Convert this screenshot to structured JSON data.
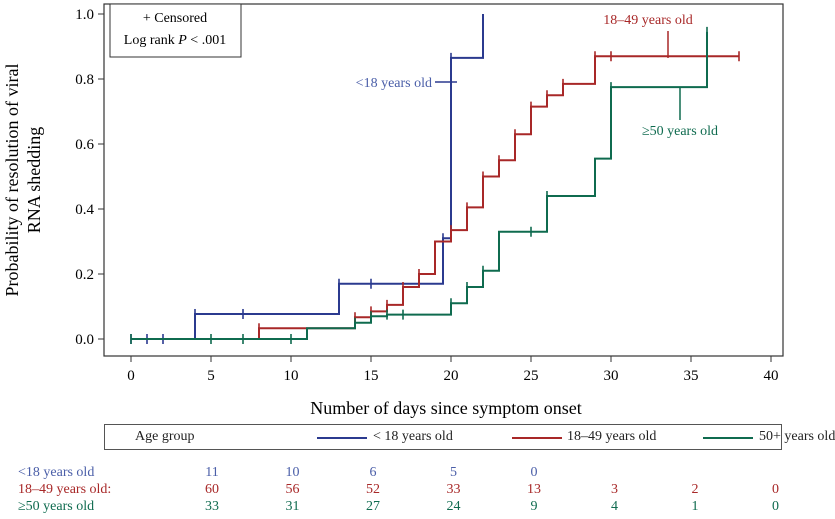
{
  "chart_data": {
    "type": "line",
    "step": true,
    "xlim": [
      0,
      40
    ],
    "ylim": [
      0,
      1
    ],
    "xticks": [
      0,
      5,
      10,
      15,
      20,
      25,
      30,
      35,
      40
    ],
    "yticks": [
      0.0,
      0.2,
      0.4,
      0.6,
      0.8,
      1.0
    ],
    "ytick_labels": [
      "0.0",
      "0.2",
      "0.4",
      "0.6",
      "0.8",
      "1.0"
    ],
    "xlabel": "Number of days since symptom onset",
    "ylabel_line1": "Probability of  resolution of viral",
    "ylabel_line2": "RNA shedding",
    "annotation_box": {
      "line1": "+ Censored",
      "line2_prefix": "Log rank ",
      "line2_p": "P",
      "line2_suffix": " < .001"
    },
    "series": [
      {
        "name": "<18 years old",
        "label": "<18 years old",
        "color": "#2b3a8f",
        "steps": [
          [
            0,
            0
          ],
          [
            4,
            0.077
          ],
          [
            13,
            0.17
          ],
          [
            19.5,
            0.31
          ],
          [
            20,
            0.865
          ],
          [
            22,
            1.0
          ]
        ],
        "end_x": 22,
        "censored_x": [
          0,
          1,
          2,
          4,
          7,
          13,
          15,
          19.5,
          20
        ]
      },
      {
        "name": "18-49 years old",
        "label": "18–49 years old",
        "color": "#a82828",
        "steps": [
          [
            0,
            0
          ],
          [
            8,
            0.033
          ],
          [
            14,
            0.067
          ],
          [
            15,
            0.085
          ],
          [
            16,
            0.105
          ],
          [
            17,
            0.16
          ],
          [
            18,
            0.2
          ],
          [
            19,
            0.3
          ],
          [
            20,
            0.335
          ],
          [
            21,
            0.405
          ],
          [
            22,
            0.5
          ],
          [
            23,
            0.55
          ],
          [
            24,
            0.63
          ],
          [
            25,
            0.715
          ],
          [
            26,
            0.75
          ],
          [
            27,
            0.785
          ],
          [
            29,
            0.87
          ]
        ],
        "end_x": 38,
        "censored_x": [
          8,
          14,
          15,
          16,
          17,
          18,
          20,
          21,
          22,
          23,
          24,
          25,
          26,
          27,
          29,
          30,
          38
        ]
      },
      {
        "name": "≥50 years old",
        "label": "≥50 years old",
        "color": "#0f6b4f",
        "steps": [
          [
            0,
            0
          ],
          [
            11,
            0.033
          ],
          [
            14,
            0.05
          ],
          [
            15,
            0.07
          ],
          [
            16,
            0.075
          ],
          [
            20,
            0.11
          ],
          [
            21,
            0.16
          ],
          [
            22,
            0.21
          ],
          [
            23,
            0.33
          ],
          [
            26,
            0.44
          ],
          [
            29,
            0.555
          ],
          [
            30,
            0.775
          ],
          [
            36,
            0.945
          ]
        ],
        "end_x": 36,
        "censored_x": [
          0,
          5,
          7,
          10,
          14,
          15,
          16,
          17,
          20,
          21,
          22,
          25,
          26,
          30,
          36
        ]
      }
    ]
  },
  "legend": {
    "title": "Age group",
    "items": [
      {
        "label": "< 18 years old",
        "color": "#2b3a8f"
      },
      {
        "label": "18–49 years old",
        "color": "#a82828"
      },
      {
        "label": "50+ years old",
        "color": "#0f6b4f"
      }
    ]
  },
  "risk_table": {
    "days": [
      5,
      10,
      15,
      20,
      25,
      30,
      35,
      40
    ],
    "rows": [
      {
        "label": "<18 years old",
        "color": "#4a5ea8",
        "values": [
          "11",
          "10",
          "6",
          "5",
          "0",
          "",
          "",
          ""
        ]
      },
      {
        "label": "18–49 years old:",
        "color": "#a82828",
        "values": [
          "60",
          "56",
          "52",
          "33",
          "13",
          "3",
          "2",
          "0"
        ]
      },
      {
        "label": "≥50 years old",
        "color": "#0f6b4f",
        "values": [
          "33",
          "31",
          "27",
          "24",
          "9",
          "4",
          "1",
          "0"
        ]
      }
    ]
  }
}
